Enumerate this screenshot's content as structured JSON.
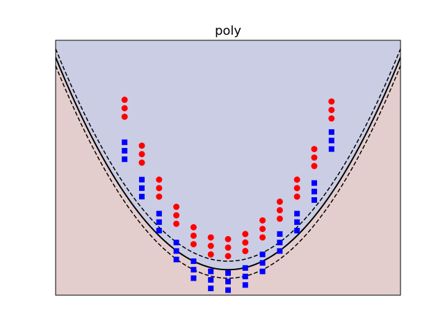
{
  "chart_data": {
    "type": "scatter",
    "title": "poly",
    "xlabel": "",
    "ylabel": "",
    "xlim": [
      -5,
      5
    ],
    "ylim": [
      -4.5,
      10.5
    ],
    "grid": false,
    "ticks_visible": false,
    "decision_function": "y = 0.5*x^2 - 3",
    "margin": 0.5,
    "colors": {
      "positive_region": "#cbcde4",
      "negative_region": "#e4cdcd",
      "class_positive": "#ff0000",
      "class_negative": "#0000ff",
      "boundary": "#000000"
    },
    "series": [
      {
        "marker": "circle",
        "color": "#ff0000",
        "x": [
          -3,
          -3,
          -3,
          -2.5,
          -2.5,
          -2.5,
          -2,
          -2,
          -2,
          -1.5,
          -1.5,
          -1.5,
          -1,
          -1,
          -1,
          -0.5,
          -0.5,
          -0.5,
          0,
          0,
          0,
          0.5,
          0.5,
          0.5,
          1,
          1,
          1,
          1.5,
          1.5,
          1.5,
          2,
          2,
          2,
          2.5,
          2.5,
          2.5,
          3,
          3,
          3
        ],
        "y": [
          7,
          6.5,
          6,
          4.3,
          3.8,
          3.3,
          2.3,
          1.8,
          1.3,
          0.7,
          0.2,
          -0.3,
          -0.5,
          -1,
          -1.5,
          -1.1,
          -1.6,
          -2.1,
          -1.2,
          -1.7,
          -2.2,
          -0.9,
          -1.4,
          -1.9,
          -0.1,
          -0.6,
          -1.1,
          1,
          0.5,
          0,
          2.3,
          1.8,
          1.3,
          4.1,
          3.6,
          3.1,
          6.9,
          6.4,
          5.9
        ]
      },
      {
        "marker": "square",
        "color": "#0000ff",
        "x": [
          -3,
          -3,
          -3,
          -2.5,
          -2.5,
          -2.5,
          -2,
          -2,
          -2,
          -1.5,
          -1.5,
          -1.5,
          -1,
          -1,
          -1,
          -0.5,
          -0.5,
          -0.5,
          0,
          0,
          0,
          0.5,
          0.5,
          0.5,
          1,
          1,
          1,
          1.5,
          1.5,
          1.5,
          2,
          2,
          2,
          2.5,
          2.5,
          2.5,
          3,
          3,
          3
        ],
        "y": [
          4.5,
          4,
          3.5,
          2.3,
          1.8,
          1.3,
          0.3,
          -0.2,
          -0.7,
          -1.4,
          -1.9,
          -2.4,
          -2.5,
          -3,
          -3.5,
          -3.1,
          -3.6,
          -4.1,
          -3.2,
          -3.7,
          -4.2,
          -2.9,
          -3.4,
          -3.9,
          -2.1,
          -2.6,
          -3.1,
          -0.9,
          -1.4,
          -1.9,
          0.3,
          -0.2,
          -0.7,
          2.1,
          1.6,
          1.1,
          5.1,
          4.6,
          4.1
        ]
      }
    ]
  }
}
